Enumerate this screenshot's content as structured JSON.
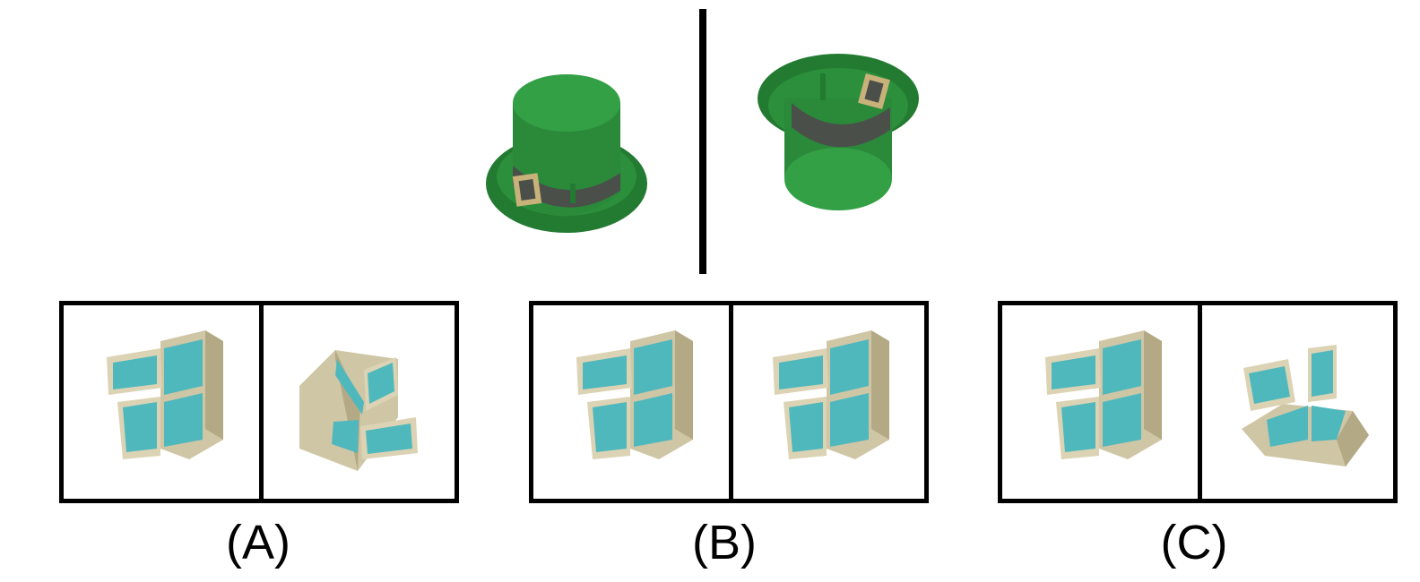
{
  "reference": {
    "object": "leprechaun-hat",
    "colors": {
      "hat": "#2a8a3a",
      "hat_dark": "#1f6b2b",
      "band": "#4a4f4a",
      "buckle": "#c9b27a"
    }
  },
  "options": [
    {
      "label": "(A)",
      "left_view": "fridge-view-standard",
      "right_view": "fridge-view-rotated"
    },
    {
      "label": "(B)",
      "left_view": "fridge-view-standard",
      "right_view": "fridge-view-standard"
    },
    {
      "label": "(C)",
      "left_view": "fridge-view-standard",
      "right_view": "fridge-view-flipped"
    }
  ],
  "colors": {
    "fridge_body": "#cfc6a6",
    "fridge_shade": "#b3a985",
    "fridge_interior": "#4fb8bd"
  }
}
